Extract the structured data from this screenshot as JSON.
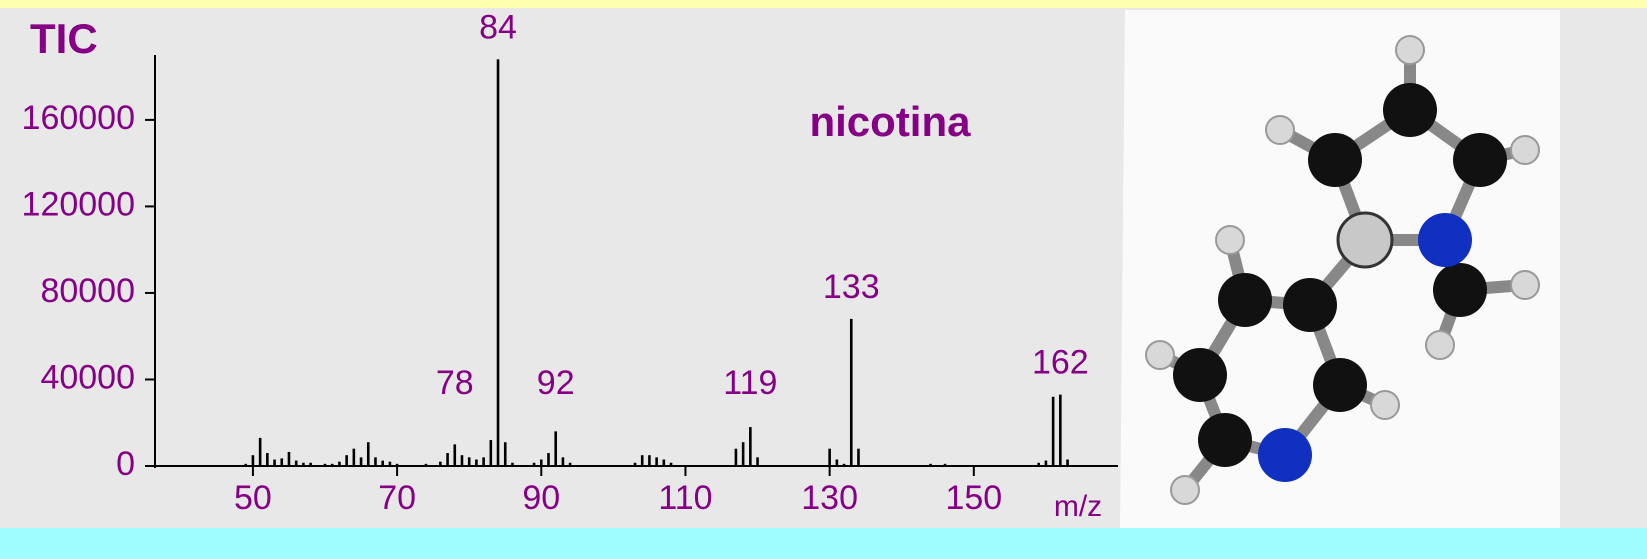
{
  "chart_data": {
    "type": "bar",
    "title": "nicotina",
    "ylabel": "TIC",
    "xlabel": "m/z",
    "x": [
      49,
      50,
      51,
      52,
      53,
      54,
      55,
      56,
      57,
      58,
      60,
      61,
      62,
      63,
      64,
      65,
      66,
      67,
      68,
      69,
      70,
      74,
      76,
      77,
      78,
      79,
      80,
      81,
      82,
      83,
      84,
      85,
      86,
      89,
      90,
      91,
      92,
      93,
      94,
      103,
      104,
      105,
      106,
      107,
      108,
      117,
      118,
      119,
      120,
      130,
      131,
      132,
      133,
      134,
      144,
      146,
      159,
      160,
      161,
      162,
      163
    ],
    "values": [
      1000,
      5000,
      13000,
      6000,
      3000,
      3500,
      6500,
      2500,
      1500,
      1500,
      1000,
      1000,
      2000,
      5000,
      8000,
      4000,
      11000,
      4000,
      2500,
      2000,
      1000,
      1000,
      2000,
      6000,
      10000,
      5000,
      4000,
      3000,
      4000,
      12000,
      188000,
      11000,
      1500,
      1500,
      3000,
      6000,
      16000,
      4000,
      1500,
      1500,
      5000,
      5000,
      4000,
      3000,
      1500,
      8000,
      11000,
      18000,
      4000,
      8000,
      3000,
      1000,
      68000,
      8000,
      1000,
      1000,
      1500,
      2500,
      32000,
      33000,
      3000
    ],
    "color": "#000000",
    "peak_labels": [
      84,
      78,
      92,
      119,
      133,
      162
    ],
    "xlim": [
      36,
      170
    ],
    "xticks": [
      50,
      70,
      90,
      110,
      130,
      150
    ],
    "ylim": [
      0,
      190000
    ],
    "yticks": [
      0,
      40000,
      80000,
      120000,
      160000
    ]
  }
}
